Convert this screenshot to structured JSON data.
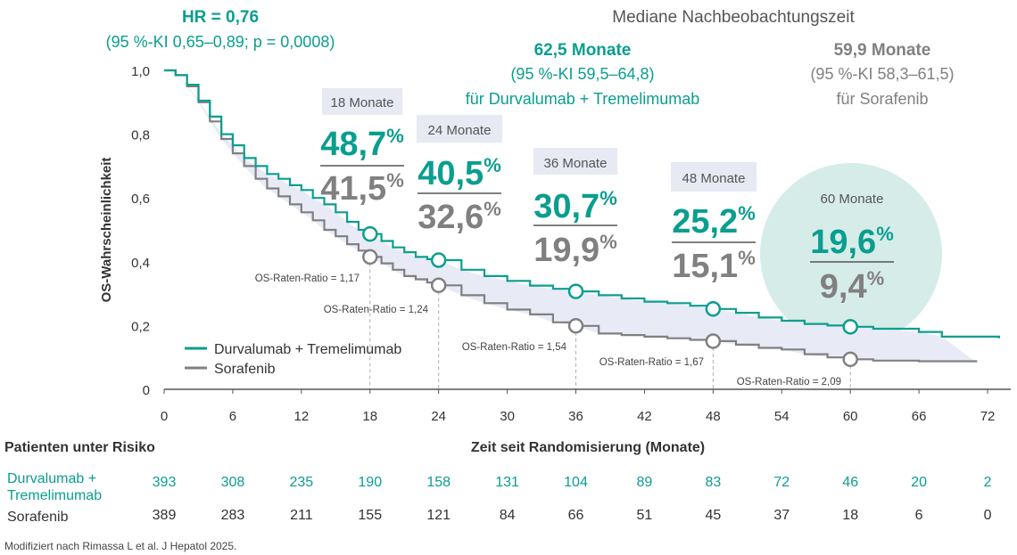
{
  "header": {
    "hr_label": "HR = 0,76",
    "hr_ci": "(95 %-KI 0,65–0,89; p = 0,0008)",
    "follow_title": "Mediane Nachbeobachtungszeit",
    "durva_months": "62,5 Monate",
    "durva_ci": "(95 %-KI 59,5–64,8)",
    "durva_for": "für Durvalumab + Tremelimumab",
    "sora_months": "59,9 Monate",
    "sora_ci": "(95 %-KI 58,3–61,5)",
    "sora_for": "für Sorafenib"
  },
  "colors": {
    "teal": "#0a9e8f",
    "gray": "#808080",
    "band": "#e8ebf6",
    "box": "#e7e9f3",
    "circle": "#d6ece8"
  },
  "chart_data": {
    "type": "line",
    "ylabel": "OS-Wahrscheinlichkeit",
    "xlabel": "Zeit seit Randomisierung (Monate)",
    "xlim": [
      0,
      72
    ],
    "ylim": [
      0,
      1
    ],
    "x_ticks": [
      "0",
      "6",
      "12",
      "18",
      "24",
      "30",
      "36",
      "42",
      "48",
      "54",
      "60",
      "66",
      "72"
    ],
    "y_ticks": [
      {
        "value": 0,
        "label": "0"
      },
      {
        "value": 0.2,
        "label": "0,2"
      },
      {
        "value": 0.4,
        "label": "0,4"
      },
      {
        "value": 0.6,
        "label": "0,6"
      },
      {
        "value": 0.8,
        "label": "0,8"
      },
      {
        "value": 1.0,
        "label": "1,0"
      }
    ],
    "series": [
      {
        "name": "Durvalumab + Tremelimumab",
        "color": "#0a9e8f",
        "points": [
          [
            0,
            1.0
          ],
          [
            1,
            0.985
          ],
          [
            2,
            0.955
          ],
          [
            3,
            0.905
          ],
          [
            4,
            0.855
          ],
          [
            5,
            0.8
          ],
          [
            6,
            0.765
          ],
          [
            7,
            0.725
          ],
          [
            8,
            0.7
          ],
          [
            9,
            0.675
          ],
          [
            10,
            0.66
          ],
          [
            11,
            0.64
          ],
          [
            12,
            0.625
          ],
          [
            13,
            0.6
          ],
          [
            14,
            0.58
          ],
          [
            15,
            0.555
          ],
          [
            16,
            0.525
          ],
          [
            17,
            0.5
          ],
          [
            18,
            0.487
          ],
          [
            19,
            0.465
          ],
          [
            20,
            0.445
          ],
          [
            21,
            0.43
          ],
          [
            22,
            0.415
          ],
          [
            23,
            0.408
          ],
          [
            24,
            0.405
          ],
          [
            26,
            0.375
          ],
          [
            28,
            0.355
          ],
          [
            30,
            0.34
          ],
          [
            32,
            0.325
          ],
          [
            34,
            0.315
          ],
          [
            36,
            0.307
          ],
          [
            38,
            0.295
          ],
          [
            40,
            0.285
          ],
          [
            42,
            0.275
          ],
          [
            44,
            0.27
          ],
          [
            46,
            0.262
          ],
          [
            48,
            0.252
          ],
          [
            50,
            0.24
          ],
          [
            52,
            0.225
          ],
          [
            54,
            0.215
          ],
          [
            56,
            0.205
          ],
          [
            58,
            0.2
          ],
          [
            60,
            0.196
          ],
          [
            62,
            0.19
          ],
          [
            66,
            0.18
          ],
          [
            68,
            0.165
          ],
          [
            73,
            0.16
          ]
        ]
      },
      {
        "name": "Sorafenib",
        "color": "#808080",
        "points": [
          [
            0,
            1.0
          ],
          [
            1,
            0.985
          ],
          [
            2,
            0.95
          ],
          [
            3,
            0.9
          ],
          [
            4,
            0.84
          ],
          [
            5,
            0.785
          ],
          [
            6,
            0.74
          ],
          [
            7,
            0.7
          ],
          [
            8,
            0.66
          ],
          [
            9,
            0.63
          ],
          [
            10,
            0.605
          ],
          [
            11,
            0.58
          ],
          [
            12,
            0.555
          ],
          [
            13,
            0.53
          ],
          [
            14,
            0.5
          ],
          [
            15,
            0.48
          ],
          [
            16,
            0.455
          ],
          [
            17,
            0.435
          ],
          [
            18,
            0.415
          ],
          [
            19,
            0.395
          ],
          [
            20,
            0.375
          ],
          [
            21,
            0.355
          ],
          [
            22,
            0.345
          ],
          [
            23,
            0.335
          ],
          [
            24,
            0.326
          ],
          [
            26,
            0.295
          ],
          [
            28,
            0.27
          ],
          [
            30,
            0.25
          ],
          [
            32,
            0.235
          ],
          [
            34,
            0.21
          ],
          [
            36,
            0.199
          ],
          [
            38,
            0.175
          ],
          [
            40,
            0.17
          ],
          [
            42,
            0.165
          ],
          [
            44,
            0.16
          ],
          [
            46,
            0.155
          ],
          [
            48,
            0.151
          ],
          [
            50,
            0.14
          ],
          [
            52,
            0.13
          ],
          [
            54,
            0.125
          ],
          [
            56,
            0.11
          ],
          [
            58,
            0.1
          ],
          [
            60,
            0.094
          ],
          [
            62,
            0.09
          ],
          [
            66,
            0.088
          ],
          [
            71,
            0.085
          ]
        ]
      }
    ],
    "milestones": [
      {
        "month": 18,
        "label": "18 Monate",
        "durva": "48,7",
        "sora": "41,5",
        "durva_y": 0.487,
        "sora_y": 0.415,
        "ratio": "OS-Raten-Ratio = 1,17"
      },
      {
        "month": 24,
        "label": "24 Monate",
        "durva": "40,5",
        "sora": "32,6",
        "durva_y": 0.405,
        "sora_y": 0.326,
        "ratio": "OS-Raten-Ratio = 1,24"
      },
      {
        "month": 36,
        "label": "36 Monate",
        "durva": "30,7",
        "sora": "19,9",
        "durva_y": 0.307,
        "sora_y": 0.199,
        "ratio": "OS-Raten-Ratio = 1,54"
      },
      {
        "month": 48,
        "label": "48 Monate",
        "durva": "25,2",
        "sora": "15,1",
        "durva_y": 0.252,
        "sora_y": 0.151,
        "ratio": "OS-Raten-Ratio = 1,67"
      },
      {
        "month": 60,
        "label": "60 Monate",
        "durva": "19,6",
        "sora": "9,4",
        "durva_y": 0.196,
        "sora_y": 0.094,
        "ratio": "OS-Raten-Ratio = 2,09"
      }
    ],
    "percent_sign": "%",
    "legend": {
      "position": "bottom-left"
    }
  },
  "risk_table": {
    "title": "Patienten unter Risiko",
    "rows": [
      {
        "name": "Durvalumab +",
        "name2": "Tremelimumab",
        "color": "#0a9e8f",
        "values": [
          "393",
          "308",
          "235",
          "190",
          "158",
          "131",
          "104",
          "89",
          "83",
          "72",
          "46",
          "20",
          "2"
        ]
      },
      {
        "name": "Sorafenib",
        "name2": "",
        "color": "#333333",
        "values": [
          "389",
          "283",
          "211",
          "155",
          "121",
          "84",
          "66",
          "51",
          "45",
          "37",
          "18",
          "6",
          "0"
        ]
      }
    ]
  },
  "footnote": "Modifiziert nach Rimassa L et al. J Hepatol 2025."
}
